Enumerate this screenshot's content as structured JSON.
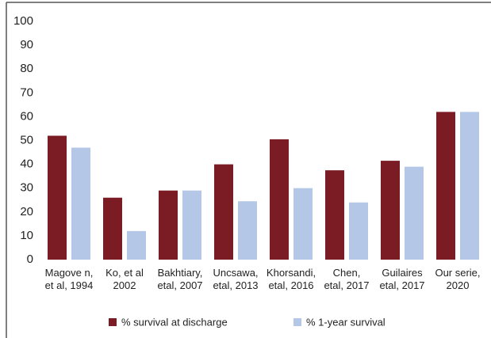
{
  "chart_data": {
    "type": "bar",
    "categories": [
      "Magove n,\net al, 1994",
      "Ko, et al\n2002",
      "Bakhtiary,\netal, 2007",
      "Uncsawa,\netal, 2013",
      "Khorsandi,\netal, 2016",
      "Chen,\netal, 2017",
      "Guilaires\netal, 2017",
      "Our serie,\n2020"
    ],
    "series": [
      {
        "name": "% survival at discharge",
        "color": "#7b1c24",
        "values": [
          52,
          26,
          29,
          40,
          50.5,
          37.5,
          41.5,
          62
        ]
      },
      {
        "name": "% 1-year survival",
        "color": "#b4c7e7",
        "values": [
          47,
          12,
          29,
          24.5,
          30,
          24,
          39,
          62
        ]
      }
    ],
    "ylim": [
      0,
      100
    ],
    "yticks": [
      0,
      10,
      20,
      30,
      40,
      50,
      60,
      70,
      80,
      90,
      100
    ],
    "grid": false
  }
}
